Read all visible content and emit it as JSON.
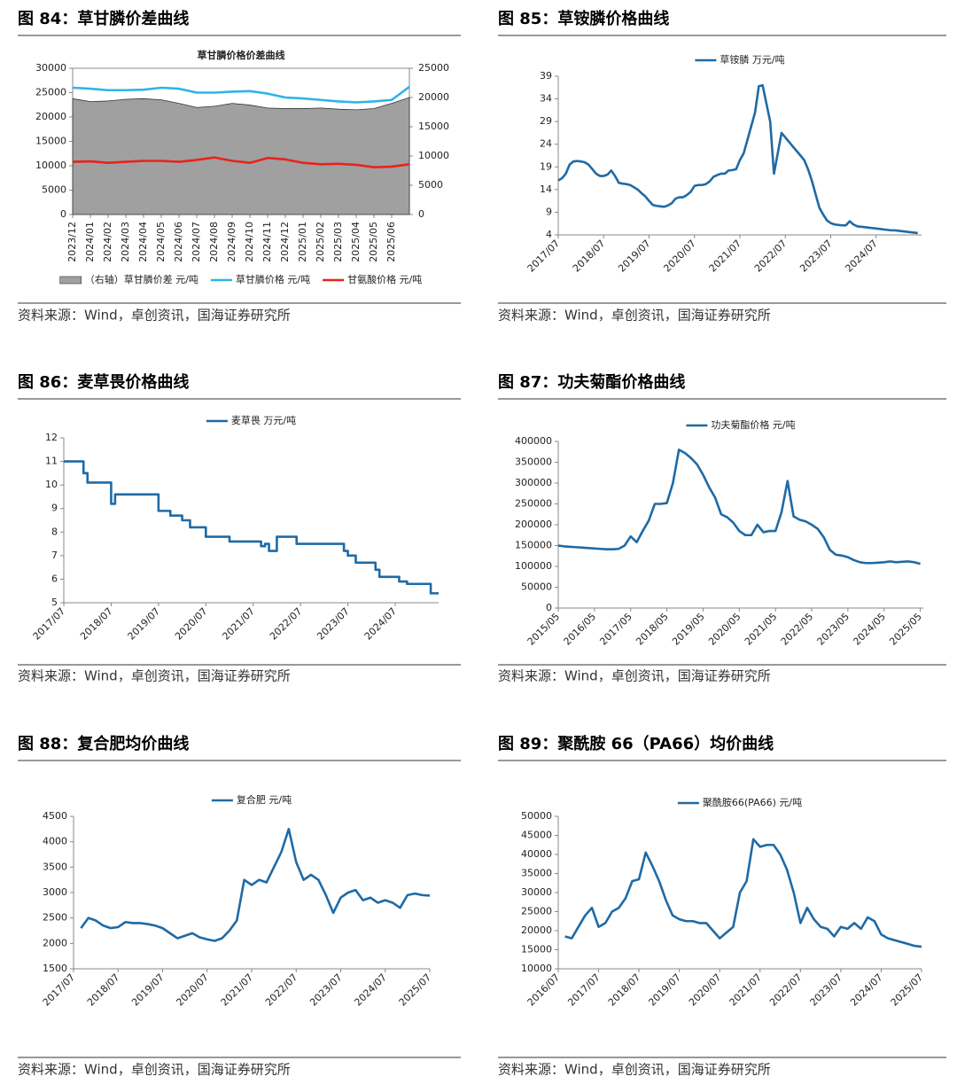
{
  "chart_data": [
    {
      "type": "line",
      "figure_title": "图 84：草甘膦价差曲线",
      "title": "草甘膦价格价差曲线",
      "source": "资料来源：Wind，卓创资讯，国海证券研究所",
      "legend": "bottom",
      "x": [
        "2023/12",
        "2024/01",
        "2024/02",
        "2024/03",
        "2024/04",
        "2024/05",
        "2024/06",
        "2024/07",
        "2024/08",
        "2024/09",
        "2024/10",
        "2024/11",
        "2024/12",
        "2025/01",
        "2025/02",
        "2025/03",
        "2025/04",
        "2025/05",
        "2025/06",
        "2025/07"
      ],
      "xlim": [
        "2023/12",
        "2025/07"
      ],
      "xticks": [
        "2023/12",
        "2024/01",
        "2024/02",
        "2024/03",
        "2024/04",
        "2024/05",
        "2024/06",
        "2024/07",
        "2024/08",
        "2024/09",
        "2024/10",
        "2024/11",
        "2024/12",
        "2025/01",
        "2025/02",
        "2025/03",
        "2025/04",
        "2025/05",
        "2025/06"
      ],
      "ylim": [
        0,
        30000
      ],
      "yticks": [
        0,
        5000,
        10000,
        15000,
        20000,
        25000,
        30000
      ],
      "y2lim": [
        0,
        25000
      ],
      "y2ticks": [
        0,
        5000,
        10000,
        15000,
        20000,
        25000
      ],
      "series": [
        {
          "name": "（右轴）草甘膦价差 元/吨",
          "color": "#a0a0a0",
          "mark": "area",
          "axis": "y2",
          "values": [
            19800,
            19300,
            19400,
            19700,
            19800,
            19600,
            19000,
            18300,
            18500,
            19000,
            18700,
            18200,
            18100,
            18100,
            18200,
            18000,
            17900,
            18100,
            19000,
            20000
          ]
        },
        {
          "name": "草甘膦价格 元/吨",
          "color": "#2db4e8",
          "values": [
            26000,
            25800,
            25500,
            25500,
            25600,
            26000,
            25800,
            25000,
            25000,
            25200,
            25300,
            24800,
            24000,
            23800,
            23500,
            23200,
            23000,
            23200,
            23500,
            26200
          ]
        },
        {
          "name": "甘氨酸价格 元/吨",
          "color": "#e8231c",
          "values": [
            10800,
            10900,
            10600,
            10800,
            11000,
            11000,
            10800,
            11200,
            11700,
            11000,
            10600,
            11600,
            11300,
            10600,
            10300,
            10400,
            10200,
            9700,
            9800,
            10300
          ]
        }
      ]
    },
    {
      "type": "line",
      "figure_title": "图 85：草铵膦价格曲线",
      "source": "资料来源：Wind，卓创资讯，国海证券研究所",
      "legend": "top",
      "x": [
        "2017/07",
        "2017/08",
        "2017/09",
        "2017/10",
        "2017/11",
        "2017/12",
        "2018/01",
        "2018/02",
        "2018/03",
        "2018/04",
        "2018/05",
        "2018/06",
        "2018/07",
        "2018/08",
        "2018/09",
        "2018/10",
        "2018/11",
        "2018/12",
        "2019/01",
        "2019/02",
        "2019/03",
        "2019/04",
        "2019/05",
        "2019/06",
        "2019/07",
        "2019/08",
        "2019/09",
        "2019/10",
        "2019/11",
        "2019/12",
        "2020/01",
        "2020/02",
        "2020/03",
        "2020/04",
        "2020/05",
        "2020/06",
        "2020/07",
        "2020/08",
        "2020/09",
        "2020/10",
        "2020/11",
        "2020/12",
        "2021/01",
        "2021/02",
        "2021/03",
        "2021/04",
        "2021/05",
        "2021/06",
        "2021/07",
        "2021/08",
        "2021/09",
        "2021/10",
        "2021/11",
        "2021/12",
        "2022/01",
        "2022/02",
        "2022/03",
        "2022/04",
        "2022/05",
        "2022/06",
        "2022/07",
        "2022/08",
        "2022/09",
        "2022/10",
        "2022/11",
        "2022/12",
        "2023/01",
        "2023/02",
        "2023/03",
        "2023/04",
        "2023/05",
        "2023/06",
        "2023/07",
        "2023/08",
        "2023/09",
        "2023/10",
        "2023/11",
        "2023/12",
        "2024/01",
        "2024/02",
        "2024/03",
        "2024/04",
        "2024/05",
        "2024/06",
        "2024/07",
        "2024/08",
        "2024/09",
        "2024/10",
        "2024/11",
        "2024/12",
        "2025/01",
        "2025/02",
        "2025/03",
        "2025/04",
        "2025/05",
        "2025/06"
      ],
      "xlim": [
        "2017/07",
        "2025/07"
      ],
      "xticks": [
        "2017/07",
        "2018/07",
        "2019/07",
        "2020/07",
        "2021/07",
        "2022/07",
        "2023/07",
        "2024/07"
      ],
      "ylim": [
        4,
        39
      ],
      "yticks": [
        4,
        9,
        14,
        19,
        24,
        29,
        34,
        39
      ],
      "series": [
        {
          "name": "草铵膦 万元/吨",
          "color": "#1f6aa5",
          "values": [
            16,
            16.5,
            17.5,
            19.5,
            20.2,
            20.3,
            20.2,
            20,
            19.5,
            18.5,
            17.5,
            17,
            17,
            17.3,
            18.2,
            17,
            15.5,
            15.3,
            15.2,
            15,
            14.5,
            14,
            13.2,
            12.5,
            11.5,
            10.6,
            10.4,
            10.3,
            10.2,
            10.5,
            11,
            12,
            12.3,
            12.3,
            12.8,
            13.5,
            14.8,
            15,
            15,
            15.2,
            15.8,
            16.8,
            17.2,
            17.5,
            17.5,
            18.2,
            18.3,
            18.5,
            20.5,
            22,
            25,
            28,
            31,
            36.8,
            37,
            33,
            29,
            17.5,
            22,
            26.5,
            25.5,
            24.5,
            23.5,
            22.5,
            21.5,
            20.5,
            18.5,
            16,
            13,
            10,
            8.5,
            7.2,
            6.6,
            6.3,
            6.2,
            6.1,
            6.1,
            7,
            6.3,
            5.9,
            5.8,
            5.7,
            5.6,
            5.5,
            5.4,
            5.3,
            5.2,
            5.1,
            5,
            5,
            4.9,
            4.8,
            4.7,
            4.6,
            4.5,
            4.4
          ]
        }
      ]
    },
    {
      "type": "line",
      "figure_title": "图 86：麦草畏价格曲线",
      "source": "资料来源：Wind，卓创资讯，国海证券研究所",
      "legend": "top",
      "step": true,
      "x": [
        "2017/07",
        "2017/08",
        "2017/09",
        "2017/10",
        "2017/11",
        "2017/12",
        "2018/01",
        "2018/02",
        "2018/03",
        "2018/04",
        "2018/05",
        "2018/06",
        "2018/07",
        "2018/08",
        "2018/09",
        "2018/10",
        "2018/11",
        "2018/12",
        "2019/01",
        "2019/02",
        "2019/03",
        "2019/04",
        "2019/05",
        "2019/06",
        "2019/07",
        "2019/08",
        "2019/09",
        "2019/10",
        "2019/11",
        "2019/12",
        "2020/01",
        "2020/02",
        "2020/03",
        "2020/04",
        "2020/05",
        "2020/06",
        "2020/07",
        "2020/08",
        "2020/09",
        "2020/10",
        "2020/11",
        "2020/12",
        "2021/01",
        "2021/02",
        "2021/03",
        "2021/04",
        "2021/05",
        "2021/06",
        "2021/07",
        "2021/08",
        "2021/09",
        "2021/10",
        "2021/11",
        "2021/12",
        "2022/01",
        "2022/02",
        "2022/03",
        "2022/04",
        "2022/05",
        "2022/06",
        "2022/07",
        "2022/08",
        "2022/09",
        "2022/10",
        "2022/11",
        "2022/12",
        "2023/01",
        "2023/02",
        "2023/03",
        "2023/04",
        "2023/05",
        "2023/06",
        "2023/07",
        "2023/08",
        "2023/09",
        "2023/10",
        "2023/11",
        "2023/12",
        "2024/01",
        "2024/02",
        "2024/03",
        "2024/04",
        "2024/05",
        "2024/06",
        "2024/07",
        "2024/08",
        "2024/09",
        "2024/10",
        "2024/11",
        "2024/12",
        "2025/01",
        "2025/02",
        "2025/03",
        "2025/04",
        "2025/05",
        "2025/06"
      ],
      "xlim": [
        "2017/07",
        "2025/06"
      ],
      "xticks": [
        "2017/07",
        "2018/07",
        "2019/07",
        "2020/07",
        "2021/07",
        "2022/07",
        "2023/07",
        "2024/07"
      ],
      "ylim": [
        5,
        12
      ],
      "yticks": [
        5,
        6,
        7,
        8,
        9,
        10,
        11,
        12
      ],
      "series": [
        {
          "name": "麦草畏 万元/吨",
          "color": "#1f6aa5",
          "values": [
            11,
            11,
            11,
            11,
            11,
            10.5,
            10.1,
            10.1,
            10.1,
            10.1,
            10.1,
            10.1,
            9.2,
            9.6,
            9.6,
            9.6,
            9.6,
            9.6,
            9.6,
            9.6,
            9.6,
            9.6,
            9.6,
            9.6,
            8.9,
            8.9,
            8.9,
            8.7,
            8.7,
            8.7,
            8.5,
            8.5,
            8.2,
            8.2,
            8.2,
            8.2,
            7.8,
            7.8,
            7.8,
            7.8,
            7.8,
            7.8,
            7.6,
            7.6,
            7.6,
            7.6,
            7.6,
            7.6,
            7.6,
            7.6,
            7.4,
            7.5,
            7.2,
            7.2,
            7.8,
            7.8,
            7.8,
            7.8,
            7.8,
            7.5,
            7.5,
            7.5,
            7.5,
            7.5,
            7.5,
            7.5,
            7.5,
            7.5,
            7.5,
            7.5,
            7.5,
            7.2,
            7,
            7,
            6.7,
            6.7,
            6.7,
            6.7,
            6.7,
            6.4,
            6.1,
            6.1,
            6.1,
            6.1,
            6.1,
            5.9,
            5.9,
            5.8,
            5.8,
            5.8,
            5.8,
            5.8,
            5.8,
            5.4,
            5.4,
            5.4
          ]
        }
      ]
    },
    {
      "type": "line",
      "figure_title": "图 87：功夫菊酯价格曲线",
      "source": "资料来源：Wind，卓创资讯，国海证券研究所",
      "legend": "top",
      "x": [
        "2015/05",
        "2015/07",
        "2015/09",
        "2015/11",
        "2016/01",
        "2016/03",
        "2016/05",
        "2016/07",
        "2016/09",
        "2016/11",
        "2017/01",
        "2017/03",
        "2017/05",
        "2017/07",
        "2017/09",
        "2017/11",
        "2018/01",
        "2018/03",
        "2018/05",
        "2018/07",
        "2018/09",
        "2018/11",
        "2019/01",
        "2019/03",
        "2019/05",
        "2019/07",
        "2019/09",
        "2019/11",
        "2020/01",
        "2020/03",
        "2020/05",
        "2020/07",
        "2020/09",
        "2020/11",
        "2021/01",
        "2021/03",
        "2021/05",
        "2021/07",
        "2021/09",
        "2021/11",
        "2022/01",
        "2022/03",
        "2022/05",
        "2022/07",
        "2022/09",
        "2022/11",
        "2023/01",
        "2023/03",
        "2023/05",
        "2023/07",
        "2023/09",
        "2023/11",
        "2024/01",
        "2024/03",
        "2024/05",
        "2024/07",
        "2024/09",
        "2024/11",
        "2025/01",
        "2025/03",
        "2025/05"
      ],
      "xlim": [
        "2015/05",
        "2025/06"
      ],
      "xticks": [
        "2015/05",
        "2016/05",
        "2017/05",
        "2018/05",
        "2019/05",
        "2020/05",
        "2021/05",
        "2022/05",
        "2023/05",
        "2024/05",
        "2025/05"
      ],
      "ylim": [
        0,
        400000
      ],
      "yticks": [
        0,
        50000,
        100000,
        150000,
        200000,
        250000,
        300000,
        350000,
        400000
      ],
      "series": [
        {
          "name": "功夫菊酯价格 元/吨",
          "color": "#1f6aa5",
          "values": [
            150000,
            148000,
            147000,
            146000,
            145000,
            144000,
            143000,
            142000,
            141000,
            141000,
            142000,
            150000,
            172000,
            158000,
            185000,
            210000,
            250000,
            250000,
            252000,
            300000,
            380000,
            372000,
            360000,
            345000,
            320000,
            290000,
            265000,
            225000,
            218000,
            205000,
            185000,
            175000,
            175000,
            200000,
            182000,
            185000,
            185000,
            230000,
            305000,
            220000,
            212000,
            208000,
            200000,
            190000,
            170000,
            140000,
            128000,
            126000,
            122000,
            115000,
            110000,
            108000,
            108000,
            109000,
            110000,
            112000,
            110000,
            111000,
            112000,
            110000,
            106000
          ]
        }
      ]
    },
    {
      "type": "line",
      "figure_title": "图 88：复合肥均价曲线",
      "source": "资料来源：Wind，卓创资讯，国海证券研究所",
      "legend": "top",
      "x": [
        "2017/09",
        "2017/11",
        "2018/01",
        "2018/03",
        "2018/05",
        "2018/07",
        "2018/09",
        "2018/11",
        "2019/01",
        "2019/03",
        "2019/05",
        "2019/07",
        "2019/09",
        "2019/11",
        "2020/01",
        "2020/03",
        "2020/05",
        "2020/07",
        "2020/09",
        "2020/11",
        "2021/01",
        "2021/03",
        "2021/05",
        "2021/07",
        "2021/09",
        "2021/11",
        "2022/01",
        "2022/03",
        "2022/05",
        "2022/07",
        "2022/09",
        "2022/11",
        "2023/01",
        "2023/03",
        "2023/05",
        "2023/07",
        "2023/09",
        "2023/11",
        "2024/01",
        "2024/03",
        "2024/05",
        "2024/07",
        "2024/09",
        "2024/11",
        "2025/01",
        "2025/03",
        "2025/05",
        "2025/07"
      ],
      "xlim": [
        "2017/07",
        "2025/07"
      ],
      "xticks": [
        "2017/07",
        "2018/07",
        "2019/07",
        "2020/07",
        "2021/07",
        "2022/07",
        "2023/07",
        "2024/07",
        "2025/07"
      ],
      "ylim": [
        1500,
        4500
      ],
      "yticks": [
        1500,
        2000,
        2500,
        3000,
        3500,
        4000,
        4500
      ],
      "series": [
        {
          "name": "复合肥  元/吨",
          "color": "#1f6aa5",
          "values": [
            2300,
            2500,
            2450,
            2350,
            2300,
            2320,
            2420,
            2400,
            2400,
            2380,
            2350,
            2300,
            2200,
            2100,
            2150,
            2200,
            2120,
            2080,
            2050,
            2100,
            2250,
            2450,
            3250,
            3150,
            3250,
            3200,
            3500,
            3800,
            4250,
            3600,
            3250,
            3350,
            3250,
            2950,
            2600,
            2900,
            3000,
            3050,
            2850,
            2900,
            2800,
            2850,
            2800,
            2700,
            2950,
            2980,
            2950,
            2940
          ]
        }
      ]
    },
    {
      "type": "line",
      "figure_title": "图 89：聚酰胺 66（PA66）均价曲线",
      "source": "资料来源：Wind，卓创资讯，国海证券研究所",
      "legend": "top",
      "x": [
        "2016/09",
        "2016/11",
        "2017/01",
        "2017/03",
        "2017/05",
        "2017/07",
        "2017/09",
        "2017/11",
        "2018/01",
        "2018/03",
        "2018/05",
        "2018/07",
        "2018/09",
        "2018/11",
        "2019/01",
        "2019/03",
        "2019/05",
        "2019/07",
        "2019/09",
        "2019/11",
        "2020/01",
        "2020/03",
        "2020/05",
        "2020/07",
        "2020/09",
        "2020/11",
        "2021/01",
        "2021/03",
        "2021/05",
        "2021/07",
        "2021/09",
        "2021/11",
        "2022/01",
        "2022/03",
        "2022/05",
        "2022/07",
        "2022/09",
        "2022/11",
        "2023/01",
        "2023/03",
        "2023/05",
        "2023/07",
        "2023/09",
        "2023/11",
        "2024/01",
        "2024/03",
        "2024/05",
        "2024/07",
        "2024/09",
        "2024/11",
        "2025/01",
        "2025/03",
        "2025/05",
        "2025/07"
      ],
      "xlim": [
        "2016/07",
        "2025/07"
      ],
      "xticks": [
        "2016/07",
        "2017/07",
        "2018/07",
        "2019/07",
        "2020/07",
        "2021/07",
        "2022/07",
        "2023/07",
        "2024/07",
        "2025/07"
      ],
      "ylim": [
        10000,
        50000
      ],
      "yticks": [
        10000,
        15000,
        20000,
        25000,
        30000,
        35000,
        40000,
        45000,
        50000
      ],
      "series": [
        {
          "name": "聚酰胺66(PA66)  元/吨",
          "color": "#1f6aa5",
          "values": [
            18500,
            18000,
            21000,
            24000,
            26000,
            21000,
            22000,
            25000,
            26000,
            28500,
            33000,
            33500,
            40500,
            37000,
            33000,
            28000,
            24000,
            23000,
            22500,
            22500,
            22000,
            22000,
            20000,
            18000,
            19500,
            21000,
            30000,
            33000,
            44000,
            42000,
            42500,
            42500,
            40000,
            36000,
            30000,
            22000,
            26000,
            23000,
            21000,
            20500,
            18500,
            21000,
            20500,
            22000,
            20500,
            23500,
            22500,
            19000,
            18000,
            17500,
            17000,
            16500,
            16000,
            15800
          ]
        }
      ]
    }
  ]
}
